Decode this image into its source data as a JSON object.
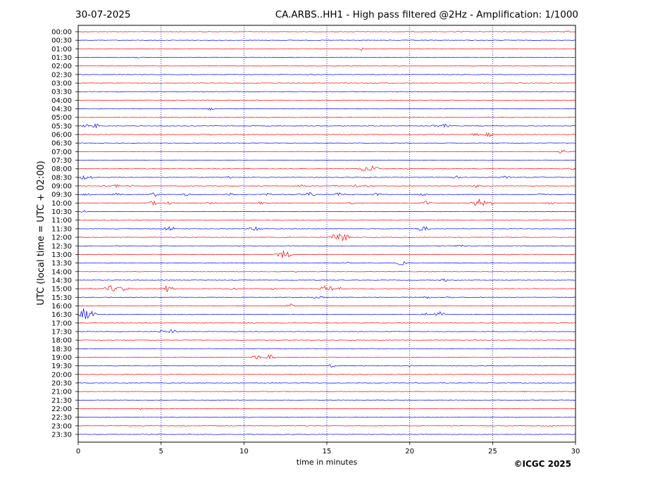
{
  "header": {
    "date": "30-07-2025",
    "title": "CA.ARBS..HH1 - High pass filtered @2Hz - Amplification: 1/1000"
  },
  "copyright": "©ICGC 2025",
  "colors": {
    "red": "#ff0000",
    "blue": "#0000ff",
    "grid": "#0000aa",
    "frame": "#000000"
  },
  "chart_data": {
    "type": "line",
    "title": "CA.ARBS..HH1 - High pass filtered @2Hz - Amplification: 1/1000",
    "xlabel": "time in minutes",
    "ylabel": "UTC (local time = UTC + 02:00)",
    "xlim": [
      0,
      30
    ],
    "xticks": [
      "0",
      "5",
      "10",
      "15",
      "20",
      "25",
      "30"
    ],
    "vertical_gridlines": [
      5,
      10,
      15,
      20,
      25
    ],
    "traces": [
      {
        "label": "00:00",
        "color": "red",
        "events": [
          {
            "t": 23.0,
            "a": 1
          },
          {
            "t": 29.5,
            "a": 2
          }
        ]
      },
      {
        "label": "00:30",
        "color": "blue",
        "events": []
      },
      {
        "label": "01:00",
        "color": "red",
        "events": [
          {
            "t": 17.1,
            "a": 2
          }
        ]
      },
      {
        "label": "01:30",
        "color": "blue",
        "events": [
          {
            "t": 3.5,
            "a": 1
          }
        ]
      },
      {
        "label": "02:00",
        "color": "red",
        "events": []
      },
      {
        "label": "02:30",
        "color": "blue",
        "events": [
          {
            "t": 14.0,
            "a": 1
          }
        ]
      },
      {
        "label": "03:00",
        "color": "red",
        "events": [
          {
            "t": 26.8,
            "a": 1
          }
        ]
      },
      {
        "label": "03:30",
        "color": "blue",
        "events": [
          {
            "t": 2.4,
            "a": 1
          }
        ]
      },
      {
        "label": "04:00",
        "color": "red",
        "events": []
      },
      {
        "label": "04:30",
        "color": "blue",
        "events": [
          {
            "t": 8.0,
            "a": 2
          }
        ]
      },
      {
        "label": "05:00",
        "color": "red",
        "events": []
      },
      {
        "label": "05:30",
        "color": "blue",
        "events": [
          {
            "t": 0.5,
            "a": 2
          },
          {
            "t": 1.1,
            "a": 3
          },
          {
            "t": 21.5,
            "a": 2
          },
          {
            "t": 22.1,
            "a": 3
          }
        ]
      },
      {
        "label": "06:00",
        "color": "red",
        "events": [
          {
            "t": 24.0,
            "a": 2
          },
          {
            "t": 24.8,
            "a": 3
          }
        ]
      },
      {
        "label": "06:30",
        "color": "blue",
        "events": []
      },
      {
        "label": "07:00",
        "color": "red",
        "events": [
          {
            "t": 29.2,
            "a": 3
          }
        ]
      },
      {
        "label": "07:30",
        "color": "blue",
        "events": []
      },
      {
        "label": "08:00",
        "color": "red",
        "events": [
          {
            "t": 17.2,
            "a": 3
          },
          {
            "t": 17.8,
            "a": 4
          },
          {
            "t": 20.0,
            "a": 1
          },
          {
            "t": 29.8,
            "a": 2
          }
        ]
      },
      {
        "label": "08:30",
        "color": "blue",
        "events": [
          {
            "t": 0.2,
            "a": 4
          },
          {
            "t": 0.8,
            "a": 2
          },
          {
            "t": 9.0,
            "a": 2
          },
          {
            "t": 17.5,
            "a": 1
          },
          {
            "t": 22.8,
            "a": 2
          },
          {
            "t": 25.8,
            "a": 2
          },
          {
            "t": 28.0,
            "a": 1
          }
        ]
      },
      {
        "label": "09:00",
        "color": "red",
        "events": [
          {
            "t": 1.6,
            "a": 2
          },
          {
            "t": 2.3,
            "a": 2
          },
          {
            "t": 3.2,
            "a": 1
          },
          {
            "t": 13.5,
            "a": 2
          },
          {
            "t": 15.5,
            "a": 1
          },
          {
            "t": 16.7,
            "a": 2
          },
          {
            "t": 17.5,
            "a": 2
          },
          {
            "t": 24.0,
            "a": 2
          }
        ]
      },
      {
        "label": "09:30",
        "color": "blue",
        "events": [
          {
            "t": 0.5,
            "a": 2
          },
          {
            "t": 2.3,
            "a": 2
          },
          {
            "t": 4.6,
            "a": 3
          },
          {
            "t": 6.5,
            "a": 2
          },
          {
            "t": 9.2,
            "a": 2
          },
          {
            "t": 11.5,
            "a": 2
          },
          {
            "t": 13.3,
            "a": 2
          },
          {
            "t": 14.0,
            "a": 3
          },
          {
            "t": 15.8,
            "a": 3
          },
          {
            "t": 18.0,
            "a": 2
          },
          {
            "t": 20.8,
            "a": 2
          },
          {
            "t": 28.0,
            "a": 2
          }
        ]
      },
      {
        "label": "10:00",
        "color": "red",
        "events": [
          {
            "t": 4.5,
            "a": 3
          },
          {
            "t": 5.5,
            "a": 2
          },
          {
            "t": 8.0,
            "a": 2
          },
          {
            "t": 11.0,
            "a": 2
          },
          {
            "t": 16.5,
            "a": 2
          },
          {
            "t": 21.0,
            "a": 3
          },
          {
            "t": 24.2,
            "a": 6
          },
          {
            "t": 25.0,
            "a": 2
          },
          {
            "t": 28.5,
            "a": 2
          }
        ]
      },
      {
        "label": "10:30",
        "color": "blue",
        "events": [
          {
            "t": 0.3,
            "a": 2
          }
        ]
      },
      {
        "label": "11:00",
        "color": "red",
        "events": []
      },
      {
        "label": "11:30",
        "color": "blue",
        "events": [
          {
            "t": 5.5,
            "a": 4
          },
          {
            "t": 10.7,
            "a": 4
          },
          {
            "t": 20.8,
            "a": 4
          }
        ]
      },
      {
        "label": "12:00",
        "color": "red",
        "events": [
          {
            "t": 15.8,
            "a": 8
          }
        ]
      },
      {
        "label": "12:30",
        "color": "blue",
        "events": [
          {
            "t": 23.0,
            "a": 2
          }
        ]
      },
      {
        "label": "13:00",
        "color": "red",
        "events": [
          {
            "t": 12.4,
            "a": 6
          },
          {
            "t": 26.0,
            "a": 1
          }
        ]
      },
      {
        "label": "13:30",
        "color": "blue",
        "events": [
          {
            "t": 16.3,
            "a": 1
          },
          {
            "t": 19.5,
            "a": 3
          }
        ]
      },
      {
        "label": "14:00",
        "color": "red",
        "events": [
          {
            "t": 13.0,
            "a": 1
          }
        ]
      },
      {
        "label": "14:30",
        "color": "blue",
        "events": [
          {
            "t": 22.1,
            "a": 2
          }
        ]
      },
      {
        "label": "15:00",
        "color": "red",
        "events": [
          {
            "t": 0.8,
            "a": 2
          },
          {
            "t": 2.0,
            "a": 5
          },
          {
            "t": 2.7,
            "a": 4
          },
          {
            "t": 5.4,
            "a": 5
          },
          {
            "t": 9.3,
            "a": 2
          },
          {
            "t": 11.7,
            "a": 2
          },
          {
            "t": 15.0,
            "a": 5
          },
          {
            "t": 15.8,
            "a": 2
          }
        ]
      },
      {
        "label": "15:30",
        "color": "blue",
        "events": [
          {
            "t": 14.5,
            "a": 3
          },
          {
            "t": 21.0,
            "a": 2
          },
          {
            "t": 22.5,
            "a": 2
          }
        ]
      },
      {
        "label": "16:00",
        "color": "red",
        "events": [
          {
            "t": 12.8,
            "a": 3
          }
        ]
      },
      {
        "label": "16:30",
        "color": "blue",
        "events": [
          {
            "t": 0.4,
            "a": 9
          },
          {
            "t": 21.0,
            "a": 2
          },
          {
            "t": 21.8,
            "a": 4
          }
        ]
      },
      {
        "label": "17:00",
        "color": "red",
        "events": [
          {
            "t": 10.5,
            "a": 1
          }
        ]
      },
      {
        "label": "17:30",
        "color": "blue",
        "events": [
          {
            "t": 5.0,
            "a": 2
          },
          {
            "t": 5.7,
            "a": 3
          }
        ]
      },
      {
        "label": "18:00",
        "color": "red",
        "events": []
      },
      {
        "label": "18:30",
        "color": "blue",
        "events": []
      },
      {
        "label": "19:00",
        "color": "red",
        "events": [
          {
            "t": 10.8,
            "a": 3
          },
          {
            "t": 11.6,
            "a": 4
          }
        ]
      },
      {
        "label": "19:30",
        "color": "blue",
        "events": [
          {
            "t": 15.3,
            "a": 2
          },
          {
            "t": 20.0,
            "a": 1
          }
        ]
      },
      {
        "label": "20:00",
        "color": "red",
        "events": []
      },
      {
        "label": "20:30",
        "color": "blue",
        "events": []
      },
      {
        "label": "21:00",
        "color": "red",
        "events": [
          {
            "t": 27.0,
            "a": 1
          }
        ]
      },
      {
        "label": "21:30",
        "color": "blue",
        "events": []
      },
      {
        "label": "22:00",
        "color": "red",
        "events": [
          {
            "t": 3.9,
            "a": 2
          }
        ]
      },
      {
        "label": "22:30",
        "color": "blue",
        "events": []
      },
      {
        "label": "23:00",
        "color": "red",
        "events": [
          {
            "t": 28.5,
            "a": 1
          }
        ]
      },
      {
        "label": "23:30",
        "color": "blue",
        "events": []
      }
    ]
  }
}
